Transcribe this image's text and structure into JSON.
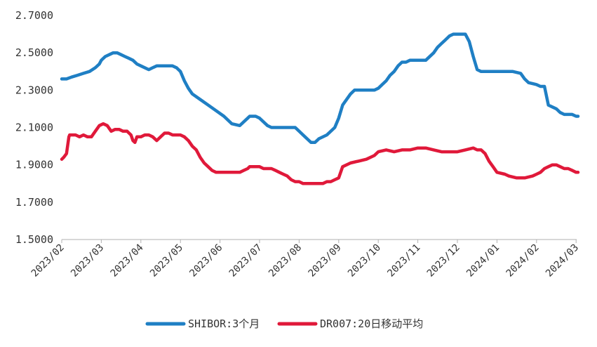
{
  "chart_data": {
    "type": "line",
    "title": "",
    "xlabel": "",
    "ylabel": "",
    "ylim": [
      1.5,
      2.7
    ],
    "y_ticks": [
      "1.5000",
      "1.7000",
      "1.9000",
      "2.1000",
      "2.3000",
      "2.5000",
      "2.7000"
    ],
    "x_ticks": [
      "2023/02",
      "2023/03",
      "2023/04",
      "2023/05",
      "2023/06",
      "2023/07",
      "2023/08",
      "2023/09",
      "2023/10",
      "2023/11",
      "2023/12",
      "2024/01",
      "2024/02",
      "2024/03"
    ],
    "x_range_months": [
      0,
      13.05
    ],
    "legend_position": "bottom",
    "series": [
      {
        "name": "SHIBOR:3个月",
        "color": "#1f7fc4",
        "x": [
          0,
          0.12,
          0.25,
          0.4,
          0.55,
          0.7,
          0.85,
          0.95,
          1.0,
          1.1,
          1.2,
          1.3,
          1.4,
          1.5,
          1.6,
          1.7,
          1.8,
          1.9,
          2.0,
          2.1,
          2.2,
          2.3,
          2.4,
          2.5,
          2.6,
          2.7,
          2.8,
          2.9,
          3.0,
          3.1,
          3.2,
          3.3,
          3.5,
          3.7,
          3.9,
          4.1,
          4.3,
          4.5,
          4.6,
          4.7,
          4.75,
          4.8,
          4.9,
          5.0,
          5.1,
          5.2,
          5.3,
          5.4,
          5.5,
          5.6,
          5.7,
          5.8,
          5.9,
          6.0,
          6.1,
          6.2,
          6.3,
          6.4,
          6.5,
          6.7,
          6.9,
          7.0,
          7.1,
          7.3,
          7.4,
          7.5,
          7.6,
          7.7,
          7.8,
          7.9,
          8.0,
          8.1,
          8.2,
          8.3,
          8.4,
          8.5,
          8.6,
          8.7,
          8.8,
          9.0,
          9.2,
          9.4,
          9.5,
          9.6,
          9.7,
          9.8,
          9.9,
          10.0,
          10.1,
          10.2,
          10.3,
          10.4,
          10.5,
          10.6,
          10.7,
          10.8,
          10.9,
          11.0,
          11.2,
          11.4,
          11.6,
          11.7,
          11.8,
          12.0,
          12.1,
          12.2,
          12.3,
          12.4,
          12.5,
          12.6,
          12.7,
          12.8,
          12.9,
          13.0,
          13.05
        ],
        "values": [
          2.36,
          2.36,
          2.37,
          2.38,
          2.39,
          2.4,
          2.42,
          2.44,
          2.46,
          2.48,
          2.49,
          2.5,
          2.5,
          2.49,
          2.48,
          2.47,
          2.46,
          2.44,
          2.43,
          2.42,
          2.41,
          2.42,
          2.43,
          2.43,
          2.43,
          2.43,
          2.43,
          2.42,
          2.4,
          2.35,
          2.31,
          2.28,
          2.25,
          2.22,
          2.19,
          2.16,
          2.12,
          2.11,
          2.13,
          2.15,
          2.16,
          2.16,
          2.16,
          2.15,
          2.13,
          2.11,
          2.1,
          2.1,
          2.1,
          2.1,
          2.1,
          2.1,
          2.1,
          2.08,
          2.06,
          2.04,
          2.02,
          2.02,
          2.04,
          2.06,
          2.1,
          2.15,
          2.22,
          2.28,
          2.3,
          2.3,
          2.3,
          2.3,
          2.3,
          2.3,
          2.31,
          2.33,
          2.35,
          2.38,
          2.4,
          2.43,
          2.45,
          2.45,
          2.46,
          2.46,
          2.46,
          2.5,
          2.53,
          2.55,
          2.57,
          2.59,
          2.6,
          2.6,
          2.6,
          2.6,
          2.56,
          2.48,
          2.41,
          2.4,
          2.4,
          2.4,
          2.4,
          2.4,
          2.4,
          2.4,
          2.39,
          2.36,
          2.34,
          2.33,
          2.32,
          2.32,
          2.22,
          2.21,
          2.2,
          2.18,
          2.17,
          2.17,
          2.17,
          2.16,
          2.16
        ]
      },
      {
        "name": "DR007:20日移动平均",
        "color": "#e0193a",
        "x": [
          0,
          0.05,
          0.12,
          0.18,
          0.2,
          0.25,
          0.35,
          0.45,
          0.55,
          0.65,
          0.75,
          0.85,
          0.95,
          1.05,
          1.15,
          1.25,
          1.35,
          1.45,
          1.55,
          1.65,
          1.75,
          1.8,
          1.85,
          1.9,
          2.0,
          2.1,
          2.2,
          2.3,
          2.4,
          2.5,
          2.6,
          2.7,
          2.8,
          2.9,
          3.0,
          3.1,
          3.2,
          3.3,
          3.4,
          3.5,
          3.6,
          3.7,
          3.8,
          3.9,
          4.0,
          4.2,
          4.4,
          4.5,
          4.6,
          4.7,
          4.75,
          4.8,
          4.9,
          5.0,
          5.1,
          5.2,
          5.3,
          5.4,
          5.5,
          5.6,
          5.7,
          5.8,
          5.9,
          6.0,
          6.1,
          6.2,
          6.3,
          6.4,
          6.5,
          6.6,
          6.7,
          6.8,
          6.9,
          7.0,
          7.1,
          7.3,
          7.5,
          7.7,
          7.9,
          8.0,
          8.2,
          8.4,
          8.6,
          8.8,
          9.0,
          9.2,
          9.4,
          9.6,
          9.8,
          10.0,
          10.2,
          10.4,
          10.5,
          10.6,
          10.7,
          10.8,
          10.9,
          11.0,
          11.2,
          11.3,
          11.5,
          11.7,
          11.9,
          12.0,
          12.1,
          12.2,
          12.3,
          12.4,
          12.5,
          12.6,
          12.7,
          12.8,
          12.9,
          13.0,
          13.05
        ],
        "values": [
          1.93,
          1.94,
          1.96,
          2.05,
          2.06,
          2.06,
          2.06,
          2.05,
          2.06,
          2.05,
          2.05,
          2.08,
          2.11,
          2.12,
          2.11,
          2.08,
          2.09,
          2.09,
          2.08,
          2.08,
          2.06,
          2.03,
          2.02,
          2.05,
          2.05,
          2.06,
          2.06,
          2.05,
          2.03,
          2.05,
          2.07,
          2.07,
          2.06,
          2.06,
          2.06,
          2.05,
          2.03,
          2.0,
          1.98,
          1.94,
          1.91,
          1.89,
          1.87,
          1.86,
          1.86,
          1.86,
          1.86,
          1.86,
          1.87,
          1.88,
          1.89,
          1.89,
          1.89,
          1.89,
          1.88,
          1.88,
          1.88,
          1.87,
          1.86,
          1.85,
          1.84,
          1.82,
          1.81,
          1.81,
          1.8,
          1.8,
          1.8,
          1.8,
          1.8,
          1.8,
          1.81,
          1.81,
          1.82,
          1.83,
          1.89,
          1.91,
          1.92,
          1.93,
          1.95,
          1.97,
          1.98,
          1.97,
          1.98,
          1.98,
          1.99,
          1.99,
          1.98,
          1.97,
          1.97,
          1.97,
          1.98,
          1.99,
          1.98,
          1.98,
          1.96,
          1.92,
          1.89,
          1.86,
          1.85,
          1.84,
          1.83,
          1.83,
          1.84,
          1.85,
          1.86,
          1.88,
          1.89,
          1.9,
          1.9,
          1.89,
          1.88,
          1.88,
          1.87,
          1.86,
          1.86
        ]
      }
    ]
  }
}
